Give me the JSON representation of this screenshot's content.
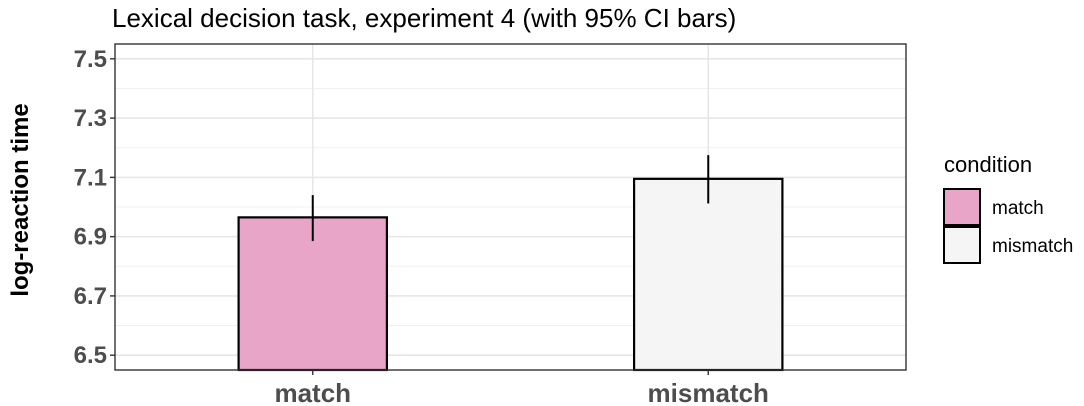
{
  "chart_data": {
    "type": "bar",
    "title": "Lexical decision task, experiment 4 (with 95% CI bars)",
    "xlabel": "",
    "ylabel": "log-reaction time",
    "categories": [
      "match",
      "mismatch"
    ],
    "values": [
      6.965,
      7.095
    ],
    "ci_lower": [
      6.885,
      7.012
    ],
    "ci_upper": [
      7.04,
      7.175
    ],
    "colors": [
      "#e8a5c8",
      "#f5f5f5"
    ],
    "ylim": [
      6.45,
      7.55
    ],
    "yticks": [
      "6.5",
      "6.7",
      "6.9",
      "7.1",
      "7.3",
      "7.5"
    ],
    "grid": true,
    "legend": {
      "title": "condition",
      "position": "right",
      "items": [
        "match",
        "mismatch"
      ]
    }
  }
}
